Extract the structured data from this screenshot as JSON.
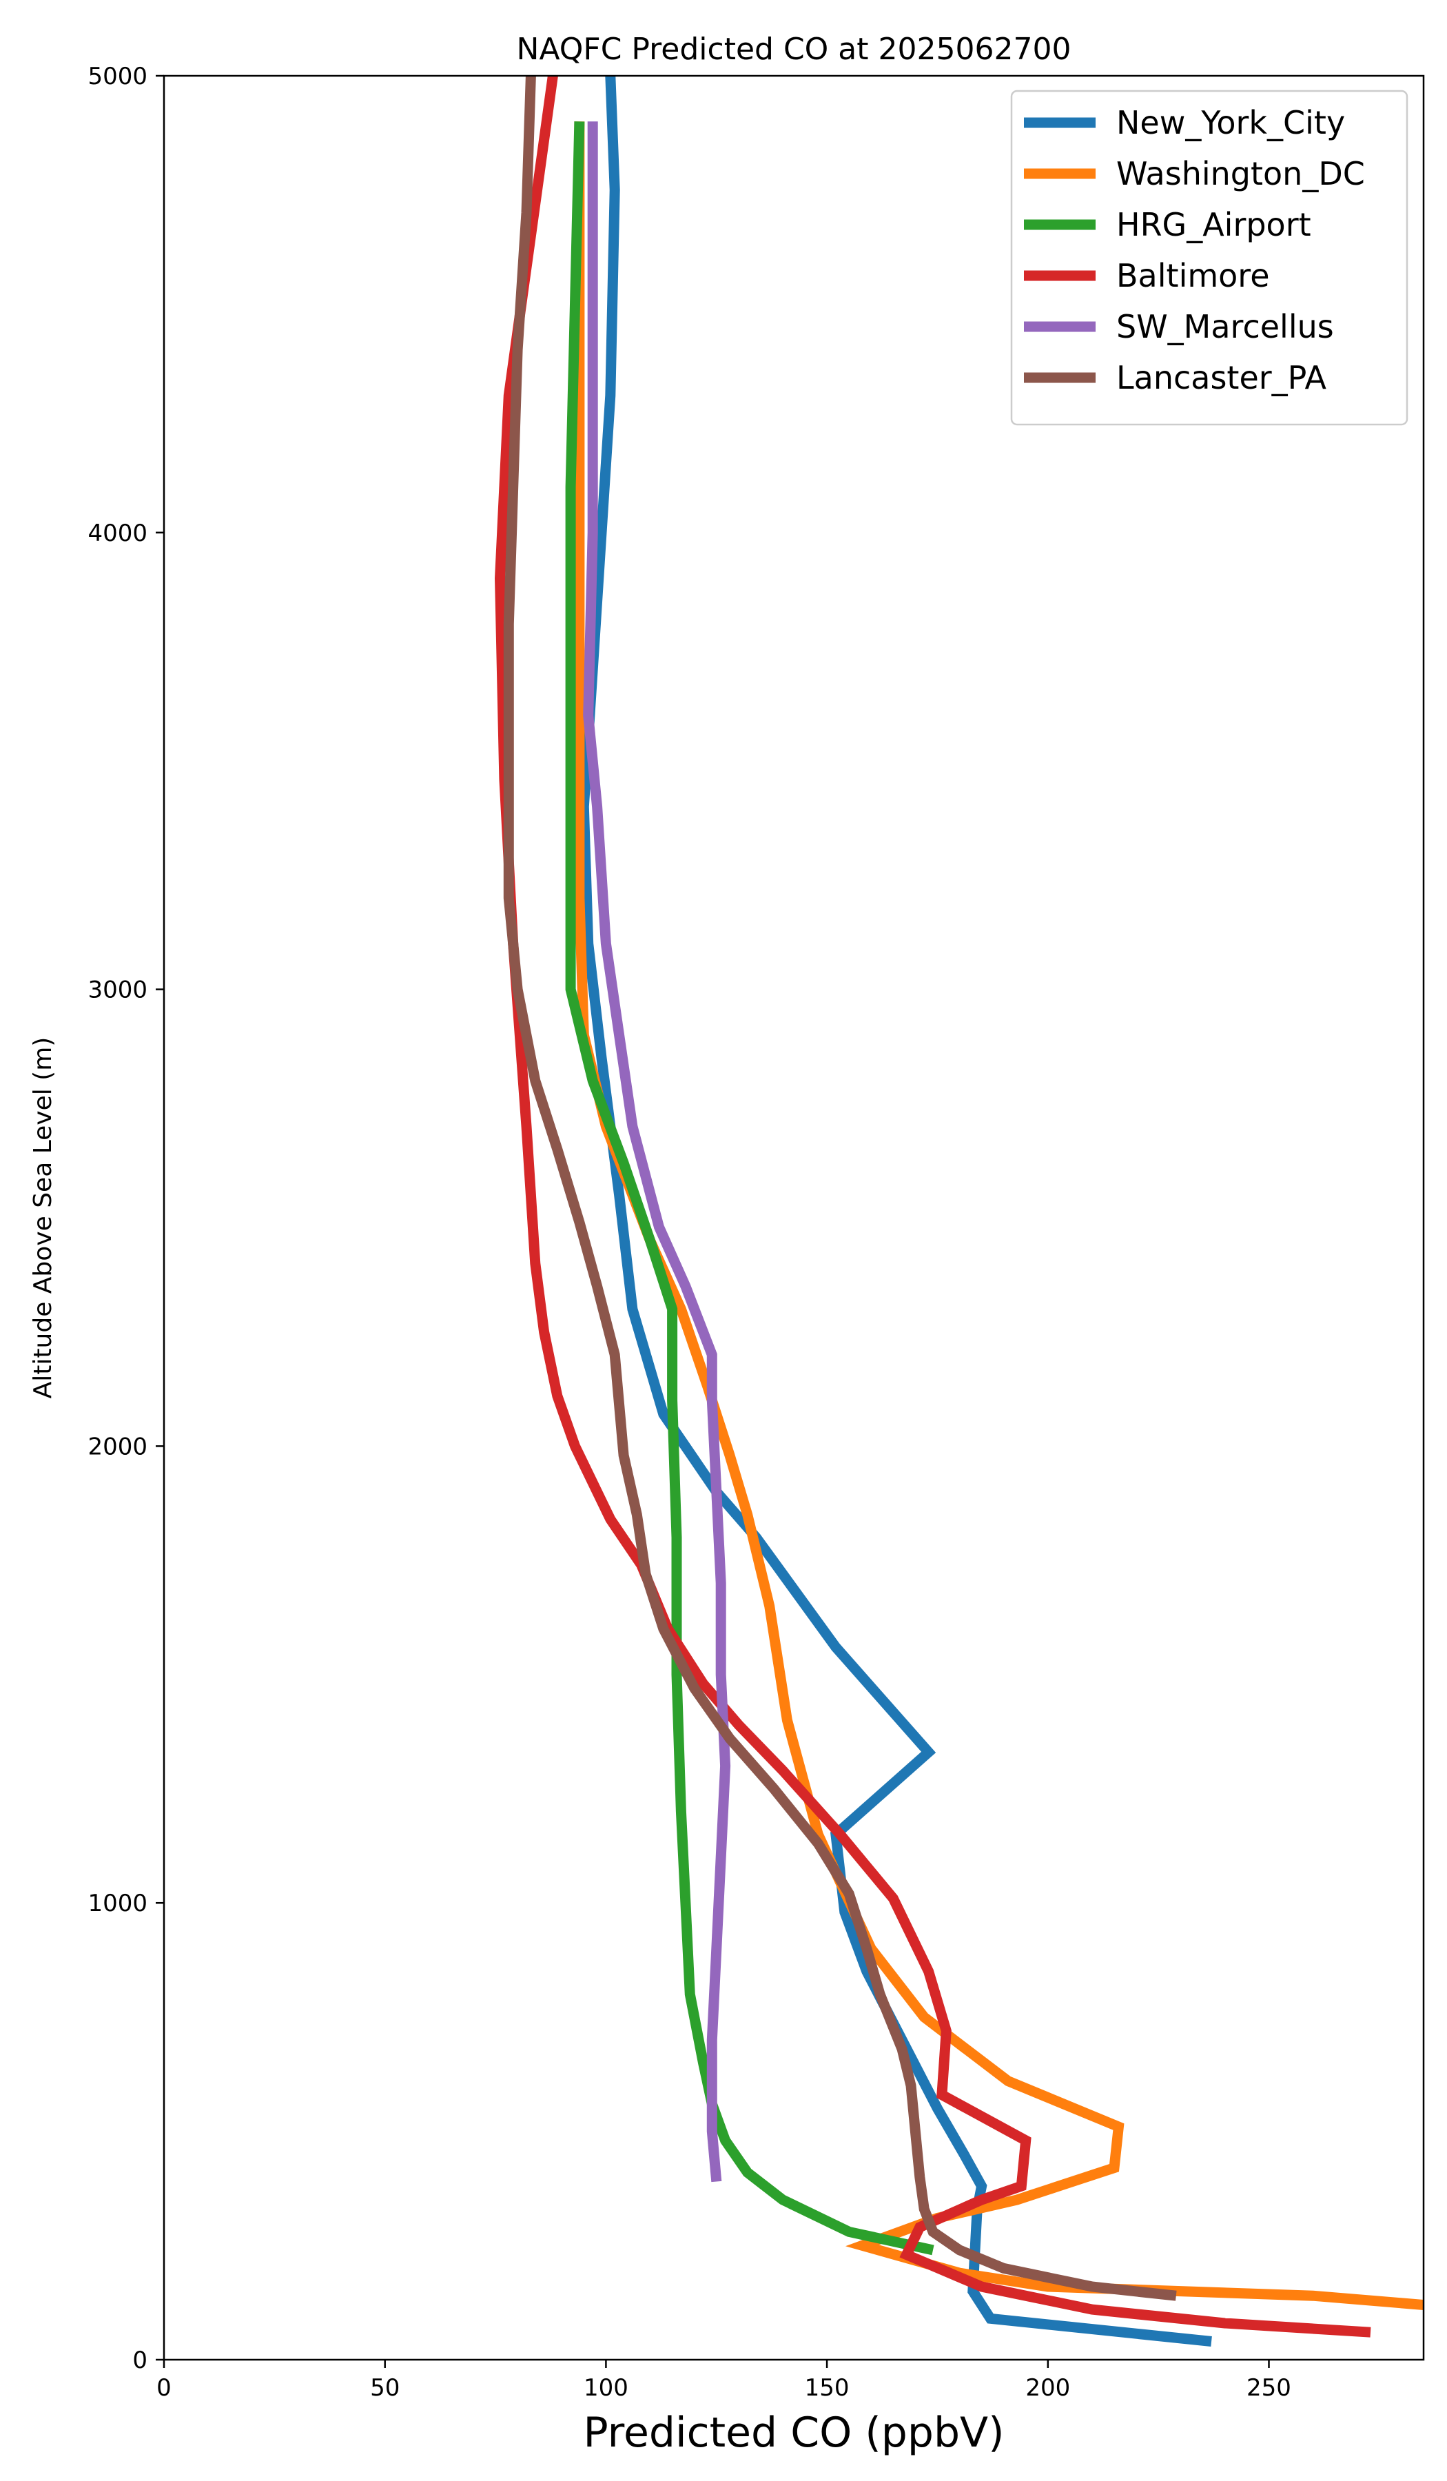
{
  "chart_data": {
    "type": "line",
    "title": "NAQFC Predicted CO at 2025062700",
    "xlabel": "Predicted CO (ppbV)",
    "ylabel": "Altitude Above Sea Level (m)",
    "xlim": [
      0,
      285
    ],
    "ylim": [
      0,
      5000
    ],
    "xticks": [
      0,
      50,
      100,
      150,
      200,
      250
    ],
    "yticks": [
      0,
      1000,
      2000,
      3000,
      4000,
      5000
    ],
    "grid": false,
    "legend_position": "top-right",
    "series": [
      {
        "name": "New_York_City",
        "color": "#1f77b4",
        "points": [
          [
            237,
            40
          ],
          [
            187,
            90
          ],
          [
            183,
            150
          ],
          [
            184,
            330
          ],
          [
            185,
            380
          ],
          [
            181,
            450
          ],
          [
            175,
            550
          ],
          [
            167,
            700
          ],
          [
            159,
            850
          ],
          [
            154,
            980
          ],
          [
            152,
            1150
          ],
          [
            173,
            1330
          ],
          [
            152,
            1560
          ],
          [
            134,
            1800
          ],
          [
            125,
            1900
          ],
          [
            113,
            2070
          ],
          [
            106,
            2300
          ],
          [
            103,
            2550
          ],
          [
            99,
            2850
          ],
          [
            96,
            3100
          ],
          [
            95,
            3400
          ],
          [
            97,
            3700
          ],
          [
            99,
            4000
          ],
          [
            101,
            4300
          ],
          [
            102,
            4750
          ],
          [
            101,
            5000
          ]
        ]
      },
      {
        "name": "Washington_DC",
        "color": "#ff7f0e",
        "points": [
          [
            285,
            120
          ],
          [
            260,
            140
          ],
          [
            230,
            150
          ],
          [
            200,
            160
          ],
          [
            180,
            190
          ],
          [
            158,
            250
          ],
          [
            175,
            310
          ],
          [
            193,
            350
          ],
          [
            215,
            420
          ],
          [
            216,
            510
          ],
          [
            191,
            610
          ],
          [
            172,
            750
          ],
          [
            160,
            900
          ],
          [
            148,
            1150
          ],
          [
            141,
            1400
          ],
          [
            137,
            1650
          ],
          [
            132,
            1850
          ],
          [
            128,
            1980
          ],
          [
            123,
            2130
          ],
          [
            117,
            2300
          ],
          [
            110,
            2450
          ],
          [
            100,
            2700
          ],
          [
            95,
            2900
          ],
          [
            94,
            3200
          ],
          [
            94,
            3600
          ],
          [
            94,
            4000
          ],
          [
            94,
            4500
          ],
          [
            94,
            4900
          ]
        ]
      },
      {
        "name": "HRG_Airport",
        "color": "#2ca02c",
        "points": [
          [
            174,
            240
          ],
          [
            155,
            280
          ],
          [
            140,
            350
          ],
          [
            132,
            410
          ],
          [
            127,
            480
          ],
          [
            124,
            560
          ],
          [
            122,
            650
          ],
          [
            119,
            800
          ],
          [
            118,
            1000
          ],
          [
            117,
            1200
          ],
          [
            116,
            1500
          ],
          [
            116,
            1800
          ],
          [
            115,
            2100
          ],
          [
            115,
            2300
          ],
          [
            110,
            2450
          ],
          [
            104,
            2620
          ],
          [
            97,
            2800
          ],
          [
            92,
            3000
          ],
          [
            92,
            3200
          ],
          [
            92,
            3500
          ],
          [
            92,
            3800
          ],
          [
            92,
            4100
          ],
          [
            93,
            4500
          ],
          [
            94,
            4900
          ]
        ]
      },
      {
        "name": "Baltimore",
        "color": "#d62728",
        "points": [
          [
            273,
            60
          ],
          [
            240,
            80
          ],
          [
            210,
            110
          ],
          [
            185,
            160
          ],
          [
            168,
            230
          ],
          [
            171,
            290
          ],
          [
            185,
            350
          ],
          [
            194,
            380
          ],
          [
            195,
            480
          ],
          [
            176,
            580
          ],
          [
            177,
            720
          ],
          [
            173,
            850
          ],
          [
            165,
            1010
          ],
          [
            153,
            1150
          ],
          [
            140,
            1290
          ],
          [
            130,
            1390
          ],
          [
            122,
            1480
          ],
          [
            114,
            1600
          ],
          [
            108,
            1740
          ],
          [
            101,
            1840
          ],
          [
            93,
            2000
          ],
          [
            89,
            2110
          ],
          [
            86,
            2250
          ],
          [
            84,
            2400
          ],
          [
            82,
            2700
          ],
          [
            79,
            3100
          ],
          [
            77,
            3460
          ],
          [
            76,
            3900
          ],
          [
            78,
            4300
          ],
          [
            83,
            4650
          ],
          [
            88,
            5000
          ]
        ]
      },
      {
        "name": "SW_Marcellus",
        "color": "#9467bd",
        "points": [
          [
            125,
            390
          ],
          [
            124,
            500
          ],
          [
            124,
            600
          ],
          [
            124,
            700
          ],
          [
            125,
            900
          ],
          [
            126,
            1100
          ],
          [
            127,
            1300
          ],
          [
            126,
            1500
          ],
          [
            126,
            1700
          ],
          [
            125,
            1900
          ],
          [
            124,
            2100
          ],
          [
            124,
            2200
          ],
          [
            118,
            2350
          ],
          [
            112,
            2480
          ],
          [
            106,
            2700
          ],
          [
            103,
            2900
          ],
          [
            100,
            3100
          ],
          [
            98,
            3400
          ],
          [
            96,
            3600
          ],
          [
            97,
            4000
          ],
          [
            97,
            4400
          ],
          [
            97,
            4900
          ]
        ]
      },
      {
        "name": "Lancaster_PA",
        "color": "#8c564b",
        "points": [
          [
            229,
            140
          ],
          [
            210,
            160
          ],
          [
            190,
            200
          ],
          [
            180,
            240
          ],
          [
            174,
            280
          ],
          [
            172,
            330
          ],
          [
            171,
            400
          ],
          [
            170,
            500
          ],
          [
            169,
            600
          ],
          [
            167,
            680
          ],
          [
            162,
            800
          ],
          [
            159,
            900
          ],
          [
            155,
            1020
          ],
          [
            148,
            1130
          ],
          [
            138,
            1250
          ],
          [
            128,
            1360
          ],
          [
            120,
            1470
          ],
          [
            113,
            1600
          ],
          [
            109,
            1720
          ],
          [
            107,
            1850
          ],
          [
            104,
            1980
          ],
          [
            102,
            2200
          ],
          [
            98,
            2350
          ],
          [
            94,
            2490
          ],
          [
            89,
            2650
          ],
          [
            84,
            2800
          ],
          [
            80,
            3000
          ],
          [
            78,
            3200
          ],
          [
            78,
            3500
          ],
          [
            78,
            3800
          ],
          [
            79,
            4100
          ],
          [
            80,
            4400
          ],
          [
            82,
            4700
          ],
          [
            83,
            5000
          ]
        ]
      }
    ]
  }
}
